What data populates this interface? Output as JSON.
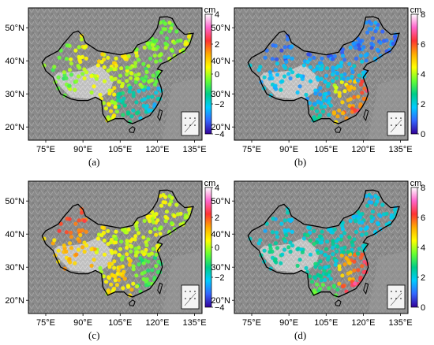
{
  "panels": [
    {
      "label": "(a)",
      "unit": "cm",
      "colorbar_ticks": [
        "4",
        "2",
        "0",
        "−2",
        "−4"
      ],
      "colormap": [
        "#ffffff",
        "#ff66cc",
        "#ff3333",
        "#ffaa00",
        "#ffff00",
        "#66ff33",
        "#00cc88",
        "#00ccff",
        "#3366ff",
        "#330099"
      ],
      "y_ticks": [
        "50°N",
        "40°N",
        "30°N",
        "20°N"
      ],
      "x_ticks": [
        "75°E",
        "90°E",
        "105°E",
        "120°E",
        "135°E"
      ]
    },
    {
      "label": "(b)",
      "unit": "cm",
      "colorbar_ticks": [
        "8",
        "6",
        "4",
        "2",
        "0"
      ],
      "colormap": [
        "#ffffff",
        "#ff66cc",
        "#ff3333",
        "#ffaa00",
        "#ffff00",
        "#66ff33",
        "#00cc88",
        "#00ccff",
        "#3366ff",
        "#330099"
      ],
      "y_ticks": [
        "50°N",
        "40°N",
        "30°N",
        "20°N"
      ],
      "x_ticks": [
        "75°E",
        "90°E",
        "105°E",
        "120°E",
        "135°E"
      ]
    },
    {
      "label": "(c)",
      "unit": "cm",
      "colorbar_ticks": [
        "4",
        "2",
        "0",
        "−2",
        "−4"
      ],
      "colormap": [
        "#ffffff",
        "#ff66cc",
        "#ff3333",
        "#ffaa00",
        "#ffff00",
        "#66ff33",
        "#00cc88",
        "#00ccff",
        "#3366ff",
        "#330099"
      ],
      "y_ticks": [
        "50°N",
        "40°N",
        "30°N",
        "20°N"
      ],
      "x_ticks": [
        "75°E",
        "90°E",
        "105°E",
        "120°E",
        "135°E"
      ]
    },
    {
      "label": "(d)",
      "unit": "cm",
      "colorbar_ticks": [
        "8",
        "6",
        "4",
        "2",
        "0"
      ],
      "colormap": [
        "#ffffff",
        "#ff66cc",
        "#ff3333",
        "#ffaa00",
        "#ffff00",
        "#66ff33",
        "#00cc88",
        "#00ccff",
        "#3366ff",
        "#330099"
      ],
      "y_ticks": [
        "50°N",
        "40°N",
        "30°N",
        "20°N"
      ],
      "x_ticks": [
        "75°E",
        "90°E",
        "105°E",
        "120°E",
        "135°E"
      ]
    }
  ]
}
